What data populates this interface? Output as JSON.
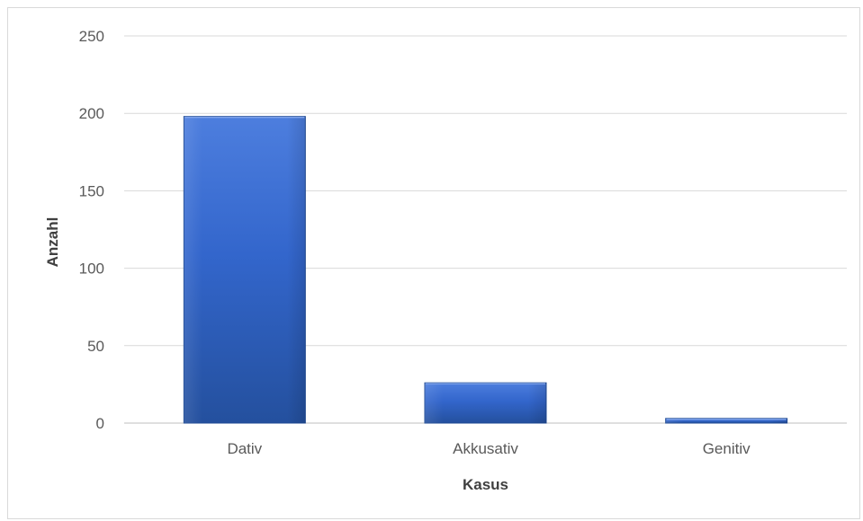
{
  "chart_data": {
    "type": "bar",
    "categories": [
      "Dativ",
      "Akkusativ",
      "Genitiv"
    ],
    "values": [
      198,
      26,
      3
    ],
    "xlabel": "Kasus",
    "ylabel": "Anzahl",
    "ylim": [
      0,
      250
    ],
    "yticks": [
      0,
      50,
      100,
      150,
      200,
      250
    ],
    "grid": true,
    "legend": "none",
    "colors": {
      "bar_top": "#4d7ede",
      "bar_mid": "#3366cc",
      "bar_bottom": "#24509e",
      "bar_edge": "#1f4a93",
      "gridline": "#d9d9d9",
      "axis_line": "#bfbfbf",
      "tick_text": "#595959",
      "title_text": "#404040"
    }
  }
}
